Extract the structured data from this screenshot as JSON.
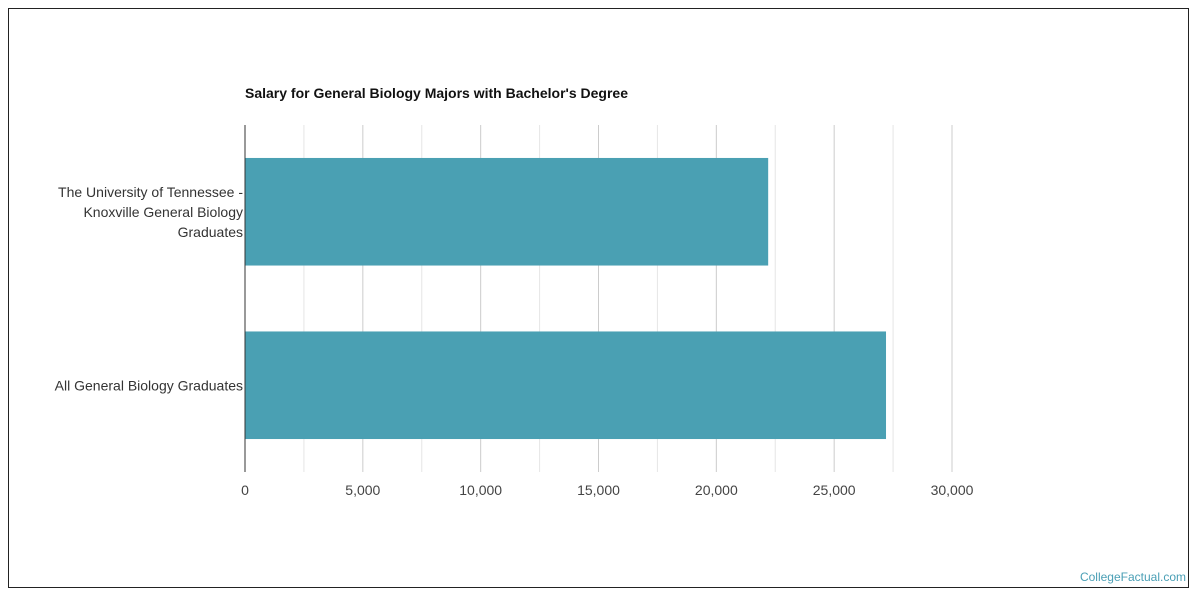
{
  "chart_data": {
    "type": "bar",
    "orientation": "horizontal",
    "title": "Salary for General Biology Majors with Bachelor's Degree",
    "categories": [
      [
        "The University of Tennessee -",
        "Knoxville General Biology",
        "Graduates"
      ],
      [
        "All General Biology Graduates"
      ]
    ],
    "values": [
      22200,
      27200
    ],
    "xlim": [
      0,
      30000
    ],
    "ticks": [
      0,
      5000,
      10000,
      15000,
      20000,
      25000,
      30000
    ],
    "tick_labels": [
      "0",
      "5,000",
      "10,000",
      "15,000",
      "20,000",
      "25,000",
      "30,000"
    ],
    "minor_gridlines": true,
    "bar_color": "#4aa0b3",
    "xlabel": "",
    "ylabel": ""
  },
  "watermark": "CollegeFactual.com"
}
